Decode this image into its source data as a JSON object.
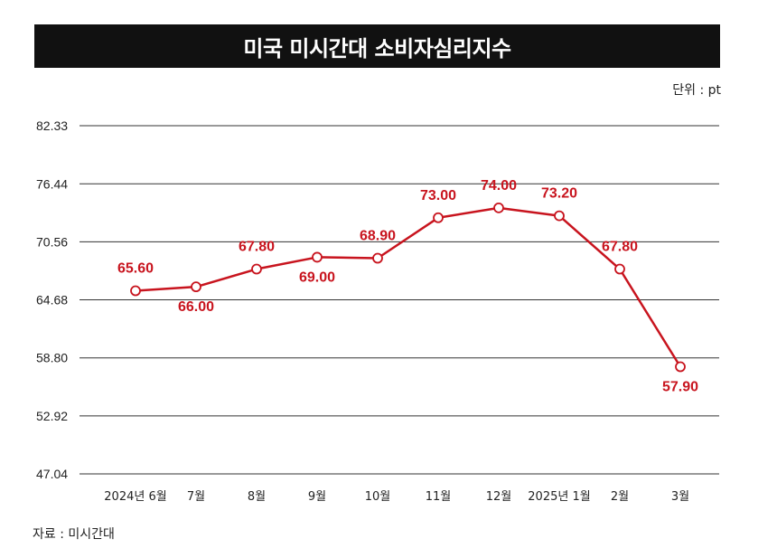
{
  "header": {
    "title": "미국 미시간대 소비자심리지수"
  },
  "unit_label": "단위 : pt",
  "source_label": "자료 : 미시간대",
  "colors": {
    "line": "#c8141e",
    "grid": "#333333",
    "title_bg": "#111111"
  },
  "chart_data": {
    "type": "line",
    "title": "미국 미시간대 소비자심리지수",
    "categories": [
      "2024년 6월",
      "7월",
      "8월",
      "9월",
      "10월",
      "11월",
      "12월",
      "2025년 1월",
      "2월",
      "3월"
    ],
    "series": [
      {
        "values": [
          65.6,
          66.0,
          67.8,
          69.0,
          68.9,
          73.0,
          74.0,
          73.2,
          67.8,
          57.9
        ]
      }
    ],
    "data_labels": [
      "65.60",
      "66.00",
      "67.80",
      "69.00",
      "68.90",
      "73.00",
      "74.00",
      "73.20",
      "67.80",
      "57.90"
    ],
    "yticks": [
      "82.33",
      "76.44",
      "70.56",
      "64.68",
      "58.80",
      "52.92",
      "47.04"
    ],
    "ylim": [
      47.04,
      82.33
    ],
    "grid": true
  }
}
